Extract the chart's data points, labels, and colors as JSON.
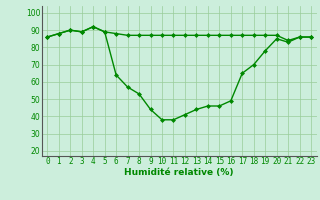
{
  "x": [
    0,
    1,
    2,
    3,
    4,
    5,
    6,
    7,
    8,
    9,
    10,
    11,
    12,
    13,
    14,
    15,
    16,
    17,
    18,
    19,
    20,
    21,
    22,
    23
  ],
  "series1": [
    86,
    88,
    90,
    89,
    92,
    89,
    88,
    87,
    87,
    87,
    87,
    87,
    87,
    87,
    87,
    87,
    87,
    87,
    87,
    87,
    87,
    84,
    86,
    86
  ],
  "series2": [
    86,
    88,
    90,
    89,
    92,
    89,
    64,
    57,
    53,
    44,
    38,
    38,
    41,
    44,
    46,
    46,
    49,
    65,
    70,
    78,
    85,
    83,
    86,
    86
  ],
  "line_color": "#008800",
  "bg_color": "#cceedc",
  "grid_color": "#99cc99",
  "xlabel": "Humidité relative (%)",
  "xlabel_color": "#008800",
  "ylabel_ticks": [
    20,
    30,
    40,
    50,
    60,
    70,
    80,
    90,
    100
  ],
  "ylim": [
    17,
    104
  ],
  "xlim": [
    -0.5,
    23.5
  ],
  "marker": "D",
  "marker_size": 2.0,
  "line_width": 1.0,
  "tick_color": "#008800",
  "tick_fontsize": 5.5,
  "xlabel_fontsize": 6.5,
  "spine_color": "#555555"
}
